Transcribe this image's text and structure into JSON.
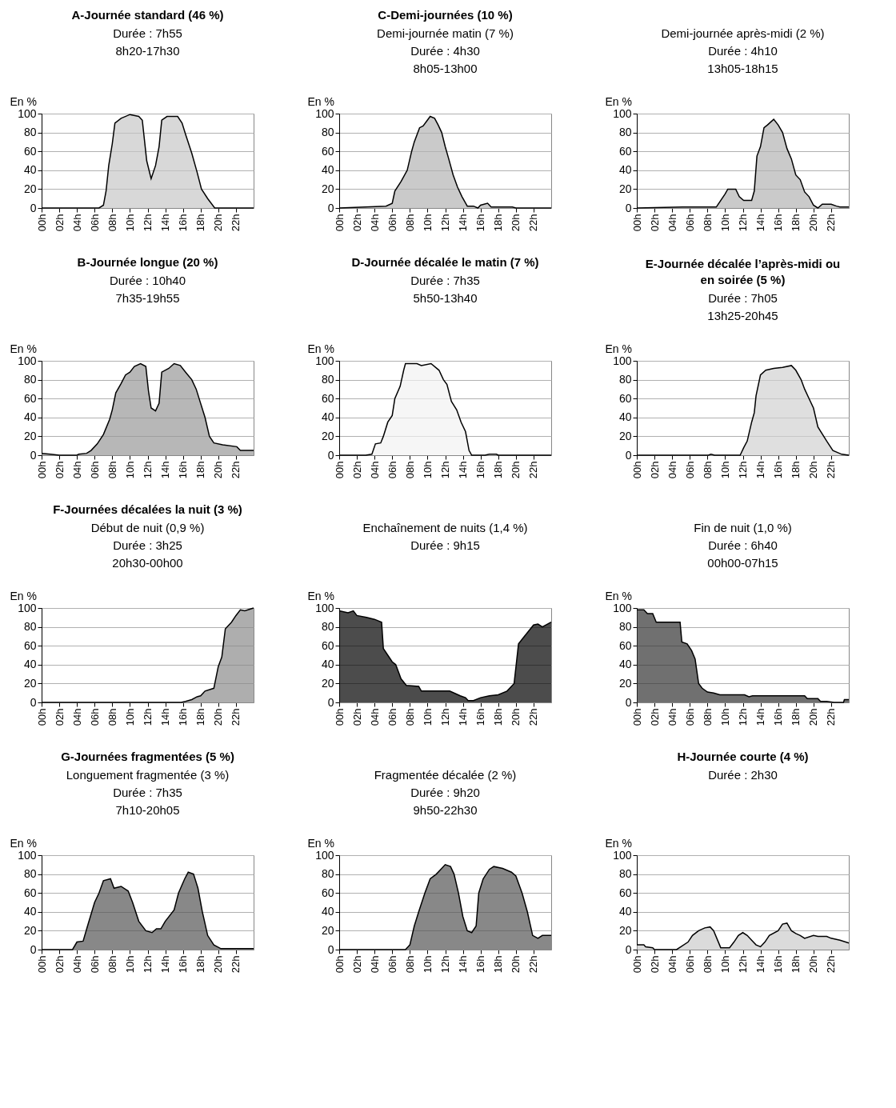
{
  "chart_data": [
    {
      "type": "area",
      "title": "A-Journée standard (46 %)",
      "subtitle": "Durée : 7h55\n8h20-17h30",
      "ylabel": "En %",
      "color": "#c8c8c8",
      "grid": "y",
      "xlim": [
        0,
        24
      ],
      "ylim": [
        0,
        100
      ],
      "yticks": [
        0,
        20,
        40,
        60,
        80,
        100
      ],
      "xticks": [
        {
          "value": 0,
          "label": "00h"
        },
        {
          "value": 2,
          "label": "02h"
        },
        {
          "value": 4,
          "label": "04h"
        },
        {
          "value": 6,
          "label": "06h"
        },
        {
          "value": 8,
          "label": "08h"
        },
        {
          "value": 10,
          "label": "10h"
        },
        {
          "value": 12,
          "label": "12h"
        },
        {
          "value": 14,
          "label": "14h"
        },
        {
          "value": 16,
          "label": "16h"
        },
        {
          "value": 18,
          "label": "18h"
        },
        {
          "value": 20,
          "label": "20h"
        },
        {
          "value": 22,
          "label": "22h"
        }
      ],
      "x": [
        0,
        6.5,
        7,
        7.3,
        7.6,
        8,
        8.3,
        9,
        10,
        11,
        11.4,
        11.9,
        12.4,
        12.9,
        13.3,
        13.6,
        14.2,
        15.4,
        15.9,
        16.3,
        17,
        17.6,
        18.1,
        18.8,
        19.6,
        24
      ],
      "values": [
        0,
        0,
        3,
        18,
        45,
        68,
        90,
        95,
        99,
        97,
        93,
        50,
        31,
        45,
        65,
        93,
        97,
        97,
        90,
        78,
        58,
        38,
        20,
        10,
        0,
        0
      ]
    },
    {
      "type": "area",
      "title": "C-Demi-journées (10 %)",
      "subtitle": "Demi-journée matin (7 %)\nDurée : 4h30\n8h05-13h00",
      "ylabel": "En %",
      "color": "#b4b4b4",
      "grid": "y",
      "xlim": [
        0,
        24
      ],
      "ylim": [
        0,
        100
      ],
      "yticks": [
        0,
        20,
        40,
        60,
        80,
        100
      ],
      "xticks": [
        {
          "value": 0,
          "label": "00h"
        },
        {
          "value": 2,
          "label": "02h"
        },
        {
          "value": 4,
          "label": "04h"
        },
        {
          "value": 6,
          "label": "06h"
        },
        {
          "value": 8,
          "label": "08h"
        },
        {
          "value": 10,
          "label": "10h"
        },
        {
          "value": 12,
          "label": "12h"
        },
        {
          "value": 14,
          "label": "14h"
        },
        {
          "value": 16,
          "label": "16h"
        },
        {
          "value": 18,
          "label": "18h"
        },
        {
          "value": 20,
          "label": "20h"
        },
        {
          "value": 22,
          "label": "22h"
        }
      ],
      "x": [
        0,
        5.3,
        6,
        6.3,
        7,
        7.7,
        8.2,
        8.5,
        9.1,
        9.5,
        9.9,
        10.3,
        10.8,
        11.2,
        11.6,
        12,
        12.4,
        12.9,
        13.4,
        13.9,
        14.5,
        15.2,
        15.7,
        16,
        16.8,
        17.2,
        19.6,
        20,
        24
      ],
      "values": [
        0,
        2,
        5,
        18,
        28,
        40,
        60,
        70,
        85,
        87,
        92,
        97,
        95,
        88,
        80,
        65,
        52,
        35,
        22,
        12,
        2,
        2,
        0,
        3,
        5,
        1,
        1,
        0,
        0
      ]
    },
    {
      "type": "area",
      "subtitle": "Demi-journée après-midi (2 %)\nDurée : 4h10\n13h05-18h15",
      "ylabel": "En %",
      "color": "#b4b4b4",
      "grid": "y",
      "xlim": [
        0,
        24
      ],
      "ylim": [
        0,
        100
      ],
      "yticks": [
        0,
        20,
        40,
        60,
        80,
        100
      ],
      "xticks": [
        {
          "value": 0,
          "label": "00h"
        },
        {
          "value": 2,
          "label": "02h"
        },
        {
          "value": 4,
          "label": "04h"
        },
        {
          "value": 6,
          "label": "06h"
        },
        {
          "value": 8,
          "label": "08h"
        },
        {
          "value": 10,
          "label": "10h"
        },
        {
          "value": 12,
          "label": "12h"
        },
        {
          "value": 14,
          "label": "14h"
        },
        {
          "value": 16,
          "label": "16h"
        },
        {
          "value": 18,
          "label": "18h"
        },
        {
          "value": 20,
          "label": "20h"
        },
        {
          "value": 22,
          "label": "22h"
        }
      ],
      "x": [
        0,
        5.2,
        9,
        10,
        10.3,
        11.2,
        11.6,
        12.1,
        13,
        13.3,
        13.6,
        14,
        14.4,
        14.8,
        15.5,
        16,
        16.5,
        17,
        17.5,
        18,
        18.5,
        19,
        19.5,
        20,
        20.5,
        21,
        22,
        22.6,
        23,
        24
      ],
      "values": [
        0,
        1,
        1,
        15,
        20,
        20,
        12,
        8,
        8,
        18,
        55,
        65,
        85,
        88,
        94,
        88,
        80,
        63,
        52,
        35,
        30,
        17,
        12,
        3,
        0,
        4,
        4,
        2,
        1,
        1
      ]
    },
    {
      "type": "area",
      "title": "B-Journée longue (20 %)",
      "subtitle": "Durée : 10h40\n7h35-19h55",
      "ylabel": "En %",
      "color": "#999999",
      "grid": "y",
      "xlim": [
        0,
        24
      ],
      "ylim": [
        0,
        100
      ],
      "yticks": [
        0,
        20,
        40,
        60,
        80,
        100
      ],
      "xticks": [
        {
          "value": 0,
          "label": "00h"
        },
        {
          "value": 2,
          "label": "02h"
        },
        {
          "value": 4,
          "label": "04h"
        },
        {
          "value": 6,
          "label": "06h"
        },
        {
          "value": 8,
          "label": "08h"
        },
        {
          "value": 10,
          "label": "10h"
        },
        {
          "value": 12,
          "label": "12h"
        },
        {
          "value": 14,
          "label": "14h"
        },
        {
          "value": 16,
          "label": "16h"
        },
        {
          "value": 18,
          "label": "18h"
        },
        {
          "value": 20,
          "label": "20h"
        },
        {
          "value": 22,
          "label": "22h"
        }
      ],
      "x": [
        0,
        1,
        2,
        4,
        4.2,
        5.1,
        5.6,
        6.3,
        7,
        7.7,
        8,
        8.4,
        9,
        9.5,
        10,
        10.5,
        11.2,
        11.8,
        12.1,
        12.4,
        12.9,
        13.3,
        13.6,
        14.4,
        15,
        15.7,
        16.3,
        17,
        17.5,
        18,
        18.5,
        19,
        19.5,
        20.5,
        22.1,
        22.5,
        24
      ],
      "values": [
        2,
        1,
        0,
        0,
        1,
        2,
        5,
        12,
        22,
        38,
        48,
        66,
        76,
        85,
        88,
        94,
        97,
        94,
        68,
        50,
        47,
        55,
        88,
        92,
        97,
        95,
        88,
        80,
        70,
        55,
        40,
        20,
        13,
        11,
        9,
        5,
        5
      ]
    },
    {
      "type": "area",
      "title": "D-Journée décalée le matin (7 %)",
      "subtitle": "Durée : 7h35\n5h50-13h40",
      "ylabel": "En %",
      "color": "#f2f2f2",
      "grid": "y",
      "xlim": [
        0,
        24
      ],
      "ylim": [
        0,
        100
      ],
      "yticks": [
        0,
        20,
        40,
        60,
        80,
        100
      ],
      "xticks": [
        {
          "value": 0,
          "label": "00h"
        },
        {
          "value": 2,
          "label": "02h"
        },
        {
          "value": 4,
          "label": "04h"
        },
        {
          "value": 6,
          "label": "06h"
        },
        {
          "value": 8,
          "label": "08h"
        },
        {
          "value": 10,
          "label": "10h"
        },
        {
          "value": 12,
          "label": "12h"
        },
        {
          "value": 14,
          "label": "14h"
        },
        {
          "value": 16,
          "label": "16h"
        },
        {
          "value": 18,
          "label": "18h"
        },
        {
          "value": 20,
          "label": "20h"
        },
        {
          "value": 22,
          "label": "22h"
        }
      ],
      "x": [
        0,
        3,
        3.7,
        4.1,
        4.7,
        5,
        5.5,
        6,
        6.3,
        6.9,
        7.3,
        7.5,
        8.8,
        9.3,
        10.4,
        11.3,
        11.8,
        12.2,
        12.7,
        13.3,
        13.8,
        14.3,
        14.7,
        15,
        16.5,
        17,
        17.8,
        18,
        24
      ],
      "values": [
        0,
        0,
        1,
        12,
        13,
        20,
        35,
        42,
        60,
        73,
        90,
        97,
        97,
        95,
        97,
        90,
        80,
        75,
        57,
        48,
        35,
        25,
        5,
        0,
        0,
        1,
        1,
        0,
        0
      ]
    },
    {
      "type": "area",
      "title": "E-Journée décalée l’après-midi ou en soirée (5 %)",
      "subtitle": "Durée : 7h05\n13h25-20h45",
      "ylabel": "En %",
      "color": "#d2d2d2",
      "grid": "y",
      "xlim": [
        0,
        24
      ],
      "ylim": [
        0,
        100
      ],
      "yticks": [
        0,
        20,
        40,
        60,
        80,
        100
      ],
      "xticks": [
        {
          "value": 0,
          "label": "00h"
        },
        {
          "value": 2,
          "label": "02h"
        },
        {
          "value": 4,
          "label": "04h"
        },
        {
          "value": 6,
          "label": "06h"
        },
        {
          "value": 8,
          "label": "08h"
        },
        {
          "value": 10,
          "label": "10h"
        },
        {
          "value": 12,
          "label": "12h"
        },
        {
          "value": 14,
          "label": "14h"
        },
        {
          "value": 16,
          "label": "16h"
        },
        {
          "value": 18,
          "label": "18h"
        },
        {
          "value": 20,
          "label": "20h"
        },
        {
          "value": 22,
          "label": "22h"
        }
      ],
      "x": [
        0,
        8.1,
        8.4,
        8.8,
        11.7,
        12.1,
        12.5,
        13,
        13.3,
        13.5,
        14,
        14.6,
        15.5,
        16.5,
        17.5,
        18,
        18.6,
        19,
        19.5,
        20,
        20.5,
        21.5,
        22.2,
        23.2,
        24
      ],
      "values": [
        0,
        0,
        1,
        0,
        0,
        8,
        15,
        35,
        45,
        63,
        85,
        90,
        92,
        93,
        95,
        90,
        80,
        70,
        60,
        50,
        30,
        15,
        5,
        1,
        0
      ]
    },
    {
      "type": "area",
      "title": "F-Journées décalées la nuit (3 %)",
      "subtitle": "Début de nuit (0,9 %)\nDurée : 3h25\n20h30-00h00",
      "ylabel": "En %",
      "color": "#8c8c8c",
      "grid": "y",
      "xlim": [
        0,
        24
      ],
      "ylim": [
        0,
        100
      ],
      "yticks": [
        0,
        20,
        40,
        60,
        80,
        100
      ],
      "xticks": [
        {
          "value": 0,
          "label": "00h"
        },
        {
          "value": 2,
          "label": "02h"
        },
        {
          "value": 4,
          "label": "04h"
        },
        {
          "value": 6,
          "label": "06h"
        },
        {
          "value": 8,
          "label": "08h"
        },
        {
          "value": 10,
          "label": "10h"
        },
        {
          "value": 12,
          "label": "12h"
        },
        {
          "value": 14,
          "label": "14h"
        },
        {
          "value": 16,
          "label": "16h"
        },
        {
          "value": 18,
          "label": "18h"
        },
        {
          "value": 20,
          "label": "20h"
        },
        {
          "value": 22,
          "label": "22h"
        }
      ],
      "x": [
        0,
        15.8,
        16.3,
        17,
        17.6,
        18,
        18.5,
        19.5,
        20,
        20.4,
        20.8,
        21.5,
        22,
        22.5,
        23,
        24
      ],
      "values": [
        0,
        0,
        1,
        3,
        6,
        7,
        12,
        15,
        38,
        48,
        78,
        85,
        92,
        98,
        97,
        100
      ]
    },
    {
      "type": "area",
      "subtitle": "Enchaînement de nuits (1,4 %)\nDurée : 9h15",
      "ylabel": "En %",
      "color": "#000000",
      "grid": "y",
      "xlim": [
        0,
        24
      ],
      "ylim": [
        0,
        100
      ],
      "yticks": [
        0,
        20,
        40,
        60,
        80,
        100
      ],
      "xticks": [
        {
          "value": 0,
          "label": "00h"
        },
        {
          "value": 2,
          "label": "02h"
        },
        {
          "value": 4,
          "label": "04h"
        },
        {
          "value": 6,
          "label": "06h"
        },
        {
          "value": 8,
          "label": "08h"
        },
        {
          "value": 10,
          "label": "10h"
        },
        {
          "value": 12,
          "label": "12h"
        },
        {
          "value": 14,
          "label": "14h"
        },
        {
          "value": 16,
          "label": "16h"
        },
        {
          "value": 18,
          "label": "18h"
        },
        {
          "value": 20,
          "label": "20h"
        },
        {
          "value": 22,
          "label": "22h"
        }
      ],
      "x": [
        0,
        1,
        1.6,
        2,
        3.1,
        4,
        4.8,
        5,
        5.5,
        6,
        6.4,
        7,
        7.6,
        9,
        9.3,
        12.5,
        13,
        13.7,
        14.3,
        14.6,
        15.2,
        16,
        17,
        18,
        19,
        19.8,
        20.3,
        20.8,
        21.4,
        22,
        22.5,
        23,
        24
      ],
      "values": [
        97,
        95,
        97,
        92,
        90,
        88,
        85,
        57,
        50,
        43,
        40,
        25,
        18,
        17,
        12,
        12,
        10,
        7,
        5,
        2,
        2,
        5,
        7,
        8,
        12,
        20,
        62,
        68,
        75,
        82,
        83,
        80,
        85
      ]
    },
    {
      "type": "area",
      "subtitle": "Fin de nuit (1,0 %)\nDurée : 6h40\n00h00-07h15",
      "ylabel": "En %",
      "color": "#333333",
      "grid": "y",
      "xlim": [
        0,
        24
      ],
      "ylim": [
        0,
        100
      ],
      "yticks": [
        0,
        20,
        40,
        60,
        80,
        100
      ],
      "xticks": [
        {
          "value": 0,
          "label": "00h"
        },
        {
          "value": 2,
          "label": "02h"
        },
        {
          "value": 4,
          "label": "04h"
        },
        {
          "value": 6,
          "label": "06h"
        },
        {
          "value": 8,
          "label": "08h"
        },
        {
          "value": 10,
          "label": "10h"
        },
        {
          "value": 12,
          "label": "12h"
        },
        {
          "value": 14,
          "label": "14h"
        },
        {
          "value": 16,
          "label": "16h"
        },
        {
          "value": 18,
          "label": "18h"
        },
        {
          "value": 20,
          "label": "20h"
        },
        {
          "value": 22,
          "label": "22h"
        }
      ],
      "x": [
        0,
        0.8,
        1.2,
        1.8,
        2.2,
        4.9,
        5.1,
        5.7,
        6.2,
        6.6,
        7,
        7.4,
        8,
        8.7,
        9.4,
        12.2,
        12.7,
        13.1,
        19,
        19.3,
        20.5,
        20.8,
        21.5,
        22.3,
        23.4,
        23.5,
        24
      ],
      "values": [
        98,
        98,
        94,
        94,
        85,
        85,
        64,
        62,
        55,
        46,
        20,
        15,
        11,
        10,
        8,
        8,
        6,
        7,
        7,
        4,
        4,
        1,
        1,
        0,
        0,
        3,
        3
      ]
    },
    {
      "type": "area",
      "title": "G-Journées fragmentées (5 %)",
      "subtitle": "Longuement fragmentée (3 %)\nDurée : 7h35\n7h10-20h05",
      "ylabel": "En %",
      "color": "#555555",
      "grid": "y",
      "xlim": [
        0,
        24
      ],
      "ylim": [
        0,
        100
      ],
      "yticks": [
        0,
        20,
        40,
        60,
        80,
        100
      ],
      "xticks": [
        {
          "value": 0,
          "label": "00h"
        },
        {
          "value": 2,
          "label": "02h"
        },
        {
          "value": 4,
          "label": "04h"
        },
        {
          "value": 6,
          "label": "06h"
        },
        {
          "value": 8,
          "label": "08h"
        },
        {
          "value": 10,
          "label": "10h"
        },
        {
          "value": 12,
          "label": "12h"
        },
        {
          "value": 14,
          "label": "14h"
        },
        {
          "value": 16,
          "label": "16h"
        },
        {
          "value": 18,
          "label": "18h"
        },
        {
          "value": 20,
          "label": "20h"
        },
        {
          "value": 22,
          "label": "22h"
        }
      ],
      "x": [
        0,
        3.5,
        4,
        4.7,
        5.2,
        6,
        6.5,
        7,
        7.8,
        8.2,
        9,
        9.8,
        10.3,
        11,
        11.8,
        12.5,
        13,
        13.5,
        14,
        15,
        15.5,
        16.2,
        16.6,
        17.2,
        17.7,
        18.2,
        18.8,
        19.5,
        20.3,
        24
      ],
      "values": [
        0,
        0,
        8,
        9,
        25,
        50,
        60,
        73,
        75,
        65,
        67,
        62,
        50,
        30,
        20,
        18,
        22,
        22,
        30,
        42,
        60,
        75,
        82,
        80,
        65,
        40,
        15,
        5,
        1,
        1
      ]
    },
    {
      "type": "area",
      "subtitle": "Fragmentée décalée (2 %)\nDurée : 9h20\n9h50-22h30",
      "ylabel": "En %",
      "color": "#555555",
      "grid": "y",
      "xlim": [
        0,
        24
      ],
      "ylim": [
        0,
        100
      ],
      "yticks": [
        0,
        20,
        40,
        60,
        80,
        100
      ],
      "xticks": [
        {
          "value": 0,
          "label": "00h"
        },
        {
          "value": 2,
          "label": "02h"
        },
        {
          "value": 4,
          "label": "04h"
        },
        {
          "value": 6,
          "label": "06h"
        },
        {
          "value": 8,
          "label": "08h"
        },
        {
          "value": 10,
          "label": "10h"
        },
        {
          "value": 12,
          "label": "12h"
        },
        {
          "value": 14,
          "label": "14h"
        },
        {
          "value": 16,
          "label": "16h"
        },
        {
          "value": 18,
          "label": "18h"
        },
        {
          "value": 20,
          "label": "20h"
        },
        {
          "value": 22,
          "label": "22h"
        }
      ],
      "x": [
        0,
        7.5,
        8,
        8.5,
        9,
        9.7,
        10.3,
        11,
        11.5,
        12,
        12.6,
        13,
        13.5,
        14,
        14.5,
        15,
        15.5,
        15.8,
        16.3,
        17,
        17.5,
        18.5,
        19.5,
        20,
        20.7,
        21.3,
        21.9,
        22.5,
        23,
        24
      ],
      "values": [
        0,
        0,
        5,
        25,
        40,
        60,
        75,
        80,
        85,
        90,
        88,
        80,
        60,
        35,
        20,
        18,
        25,
        60,
        75,
        85,
        88,
        86,
        82,
        78,
        60,
        40,
        15,
        12,
        15,
        15
      ]
    },
    {
      "type": "area",
      "title": "H-Journée courte (4 %)",
      "subtitle": "Durée : 2h30",
      "ylabel": "En %",
      "color": "#cccccc",
      "grid": "y",
      "xlim": [
        0,
        24
      ],
      "ylim": [
        0,
        100
      ],
      "yticks": [
        0,
        20,
        40,
        60,
        80,
        100
      ],
      "xticks": [
        {
          "value": 0,
          "label": "00h"
        },
        {
          "value": 2,
          "label": "02h"
        },
        {
          "value": 4,
          "label": "04h"
        },
        {
          "value": 6,
          "label": "06h"
        },
        {
          "value": 8,
          "label": "08h"
        },
        {
          "value": 10,
          "label": "10h"
        },
        {
          "value": 12,
          "label": "12h"
        },
        {
          "value": 14,
          "label": "14h"
        },
        {
          "value": 16,
          "label": "16h"
        },
        {
          "value": 18,
          "label": "18h"
        },
        {
          "value": 20,
          "label": "20h"
        },
        {
          "value": 22,
          "label": "22h"
        }
      ],
      "x": [
        0,
        0.8,
        1,
        1.8,
        2,
        4.5,
        5,
        5.8,
        6.3,
        7,
        7.7,
        8.3,
        8.7,
        9.5,
        10.5,
        11,
        11.5,
        12,
        12.5,
        13,
        13.5,
        14,
        14.5,
        15,
        16,
        16.5,
        17,
        17.5,
        18,
        18.5,
        19,
        20,
        20.5,
        21.5,
        22,
        23,
        24
      ],
      "values": [
        5,
        5,
        3,
        2,
        0,
        0,
        3,
        8,
        15,
        20,
        23,
        24,
        20,
        2,
        2,
        8,
        15,
        18,
        15,
        10,
        5,
        3,
        8,
        15,
        20,
        27,
        28,
        20,
        17,
        15,
        12,
        15,
        14,
        14,
        12,
        10,
        7
      ]
    }
  ]
}
